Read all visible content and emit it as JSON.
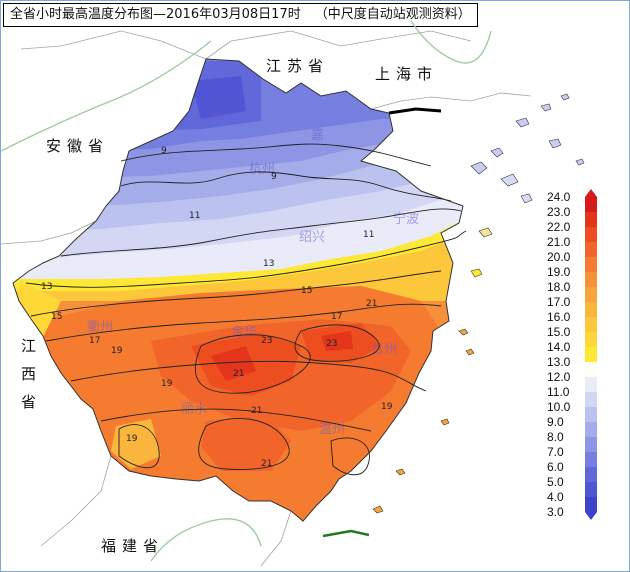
{
  "title": {
    "main": "全省小时最高温度分布图—2016年03月08日17时",
    "source": "（中尺度自动站观测资料）"
  },
  "neighbors": {
    "jiangsu": "江苏省",
    "shanghai": "上海市",
    "anhui": "安徽省",
    "jiangxi": [
      "江",
      "西",
      "省"
    ],
    "fujian": "福建省"
  },
  "city_labels": [
    "湖州",
    "嘉",
    "杭州",
    "宁波",
    "绍兴",
    "衢州",
    "金华",
    "台州",
    "丽水",
    "温州"
  ],
  "contour_labels": [
    "9",
    "11",
    "13",
    "15",
    "17",
    "19",
    "21",
    "23"
  ],
  "legend": {
    "ticks": [
      "24.0",
      "23.0",
      "22.0",
      "21.0",
      "20.0",
      "19.0",
      "18.0",
      "17.0",
      "16.0",
      "15.0",
      "14.0",
      "13.0",
      "12.0",
      "11.0",
      "10.0",
      "9.0",
      "8.0",
      "7.0",
      "6.0",
      "5.0",
      "4.0",
      "3.0"
    ],
    "colors": [
      "#d7191c",
      "#e3341c",
      "#ed4e1f",
      "#f2652a",
      "#f47b2f",
      "#f6903a",
      "#f8a33b",
      "#fab63c",
      "#fcc73a",
      "#fdd838",
      "#fde835",
      "#fefef6",
      "#e9ebf8",
      "#d3d7f4",
      "#bcc2ef",
      "#a5acea",
      "#8d95e4",
      "#767fdf",
      "#6168d9",
      "#4f55d3",
      "#3d44cc"
    ]
  },
  "colors": {
    "frame_border": "#7da9d8",
    "river": "#9ecb9e",
    "sea": "#ffffff"
  }
}
